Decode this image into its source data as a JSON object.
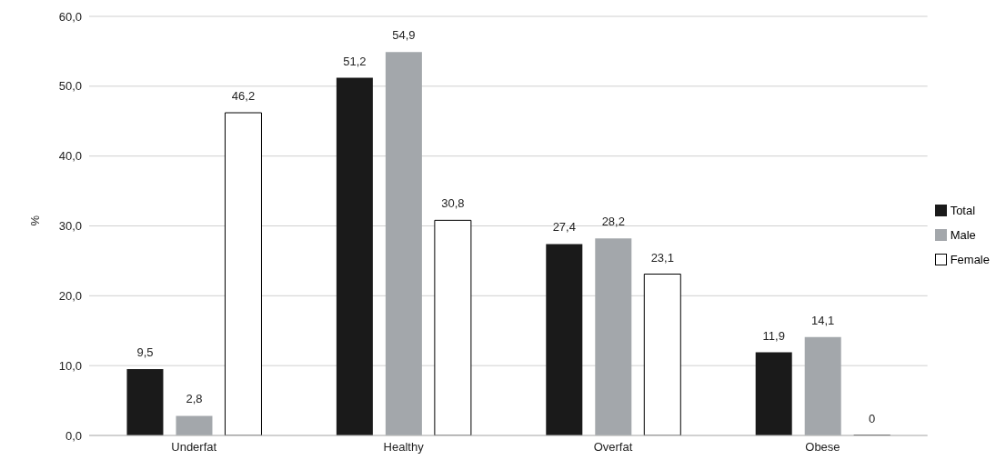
{
  "chart_data": {
    "type": "bar",
    "ylabel": "%",
    "categories": [
      "Underfat",
      "Healthy",
      "Overfat",
      "Obese"
    ],
    "series": [
      {
        "name": "Total",
        "color": "#1a1a1a",
        "values": [
          9.5,
          51.2,
          27.4,
          11.9
        ],
        "value_labels": [
          "9,5",
          "51,2",
          "27,4",
          "11,9"
        ]
      },
      {
        "name": "Male",
        "color": "#a3a7ab",
        "values": [
          2.8,
          54.9,
          28.2,
          14.1
        ],
        "value_labels": [
          "2,8",
          "54,9",
          "28,2",
          "14,1"
        ]
      },
      {
        "name": "Female",
        "color": "#ffffff",
        "values": [
          46.2,
          30.8,
          23.1,
          0
        ],
        "value_labels": [
          "46,2",
          "30,8",
          "23,1",
          "0"
        ]
      }
    ],
    "ylim": [
      0,
      60
    ],
    "yticks": [
      {
        "value": 0,
        "label": "0,0"
      },
      {
        "value": 10,
        "label": "10,0"
      },
      {
        "value": 20,
        "label": "20,0"
      },
      {
        "value": 30,
        "label": "30,0"
      },
      {
        "value": 40,
        "label": "40,0"
      },
      {
        "value": 50,
        "label": "50,0"
      },
      {
        "value": 60,
        "label": "60,0"
      }
    ],
    "grid": "y",
    "legend": "right"
  }
}
